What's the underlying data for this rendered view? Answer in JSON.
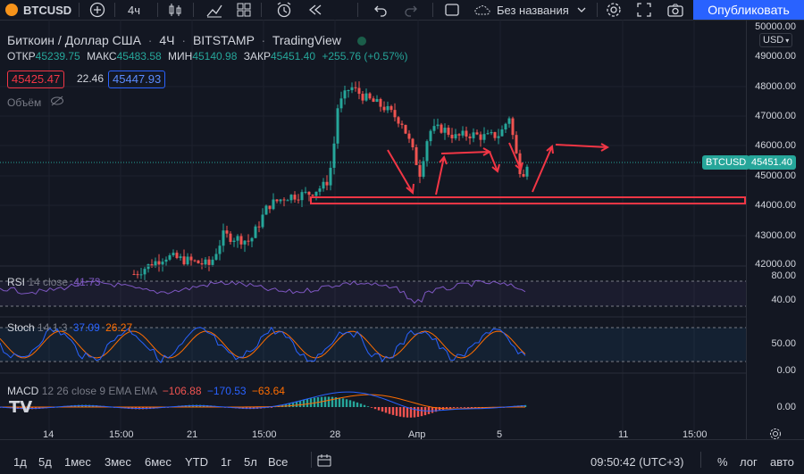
{
  "toolbar": {
    "symbol": "BTCUSD",
    "interval": "4ч",
    "layout_name": "Без названия",
    "publish_label": "Опубликовать"
  },
  "legend": {
    "title": "Биткоин / Доллар США",
    "interval": "4Ч",
    "exchange": "BITSTAMP",
    "source": "TradingView",
    "open_label": "ОТКР",
    "open": "45239.75",
    "high_label": "МАКС",
    "high": "45483.58",
    "low_label": "МИН",
    "low": "45140.98",
    "close_label": "ЗАКР",
    "close": "45451.40",
    "change": "+255.76 (+0.57%)",
    "bid": "45425.47",
    "spread": "22.46",
    "ask": "45447.93",
    "volume_label": "Объём"
  },
  "price_axis": {
    "currency": "USD",
    "labels": [
      "50000.00",
      "49000.00",
      "48000.00",
      "47000.00",
      "46000.00",
      "45000.00",
      "44000.00",
      "43000.00",
      "42000.00"
    ],
    "symbol_tag": "BTCUSD",
    "last_price": "45451.40"
  },
  "rsi": {
    "label": "RSI",
    "params": "14 close",
    "value": "41.73",
    "levels": [
      "80.00",
      "40.00"
    ]
  },
  "stoch": {
    "label": "Stoch",
    "params": "14 1 3",
    "k": "37.09",
    "d": "26.27",
    "levels": [
      "50.00",
      "0.00"
    ]
  },
  "macd": {
    "label": "MACD",
    "params": "12 26 close 9 EMA EMA",
    "hist": "−106.88",
    "macd": "−170.53",
    "signal": "−63.64",
    "levels": [
      "0.00"
    ]
  },
  "time_axis": {
    "labels": [
      "14",
      "15:00",
      "21",
      "15:00",
      "28",
      "Апр",
      "5",
      "11",
      "15:00"
    ]
  },
  "bottom": {
    "ranges": [
      "1д",
      "5д",
      "1мес",
      "3мес",
      "6мес",
      "YTD",
      "1г",
      "5л",
      "Все"
    ],
    "clock": "09:50:42 (UTC+3)",
    "percent": "%",
    "log": "лог",
    "auto": "авто"
  },
  "colors": {
    "up": "#26a69a",
    "down": "#ef5350",
    "accent": "#2962ff",
    "annotation": "#f23645"
  }
}
